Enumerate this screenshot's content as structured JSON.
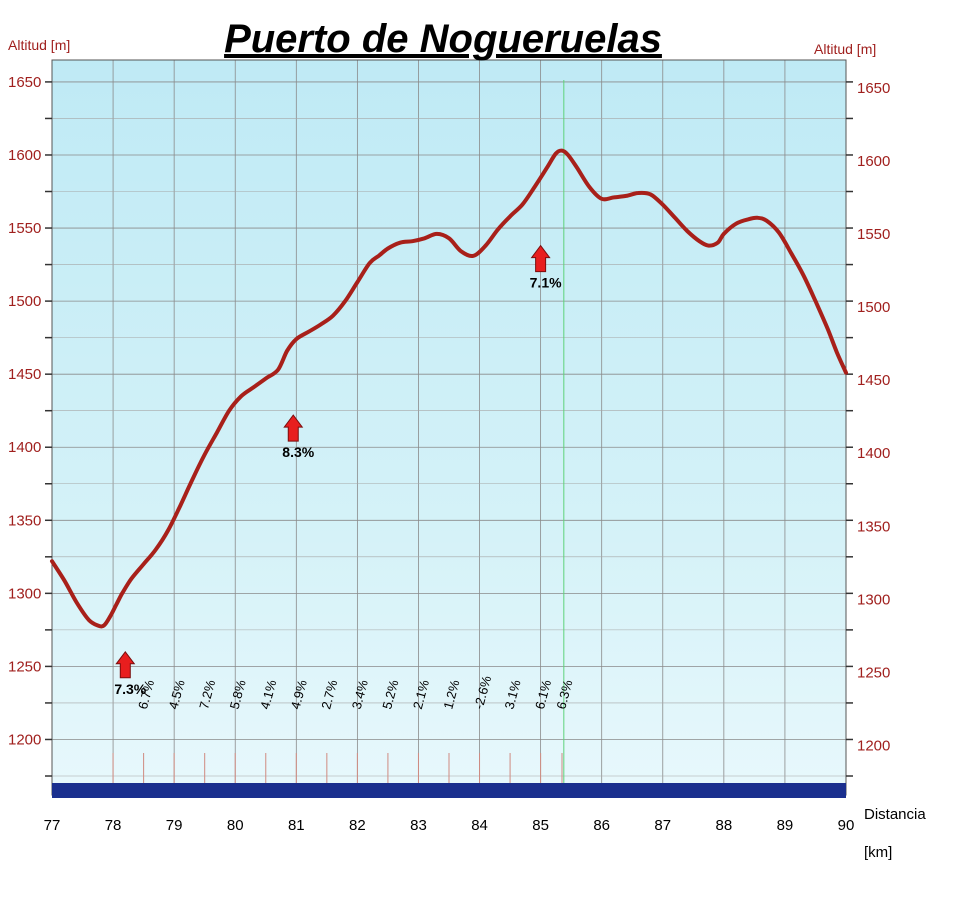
{
  "chart_data": {
    "type": "line",
    "title": "Puerto de Nogueruelas",
    "ylabel_left": "Altitud [m]",
    "ylabel_right": "Altitud [m]",
    "xlabel": "Distancia",
    "xunit": "[km]",
    "xlim": [
      77,
      90
    ],
    "ylim": [
      1162,
      1665
    ],
    "x_ticks": [
      "77",
      "78",
      "79",
      "80",
      "81",
      "82",
      "83",
      "84",
      "85",
      "86",
      "87",
      "88",
      "89",
      "90"
    ],
    "y_ticks": [
      "1200",
      "1250",
      "1300",
      "1350",
      "1400",
      "1450",
      "1500",
      "1550",
      "1600",
      "1650"
    ],
    "grid": true,
    "series": [
      {
        "x": [
          77.0,
          77.2,
          77.4,
          77.6,
          77.75,
          77.85,
          77.95,
          78.05,
          78.15,
          78.3,
          78.5,
          78.7,
          78.9,
          79.1,
          79.3,
          79.5,
          79.7,
          79.9,
          80.1,
          80.3,
          80.5,
          80.7,
          80.85,
          81.0,
          81.2,
          81.4,
          81.6,
          81.8,
          82.0,
          82.2,
          82.35,
          82.5,
          82.7,
          82.9,
          83.1,
          83.3,
          83.5,
          83.7,
          83.9,
          84.1,
          84.3,
          84.5,
          84.7,
          84.9,
          85.1,
          85.25,
          85.35,
          85.45,
          85.6,
          85.8,
          86.0,
          86.2,
          86.4,
          86.6,
          86.8,
          87.0,
          87.2,
          87.4,
          87.6,
          87.75,
          87.9,
          88.0,
          88.2,
          88.4,
          88.55,
          88.7,
          88.9,
          89.1,
          89.3,
          89.5,
          89.7,
          89.85,
          90.0
        ],
        "y": [
          1322,
          1309,
          1294,
          1282,
          1278,
          1278,
          1284,
          1292,
          1300,
          1310,
          1320,
          1330,
          1343,
          1360,
          1378,
          1395,
          1410,
          1425,
          1435,
          1441,
          1447,
          1453,
          1466,
          1474,
          1479,
          1484,
          1490,
          1500,
          1513,
          1526,
          1531,
          1536,
          1540,
          1541,
          1543,
          1546,
          1543,
          1534,
          1531,
          1538,
          1549,
          1558,
          1566,
          1578,
          1591,
          1601,
          1603,
          1600,
          1591,
          1578,
          1570,
          1571,
          1572,
          1574,
          1573,
          1566,
          1557,
          1548,
          1541,
          1538,
          1540,
          1546,
          1553,
          1556,
          1557,
          1555,
          1547,
          1533,
          1518,
          1500,
          1481,
          1465,
          1451
        ]
      }
    ],
    "grade_labels": [
      "6.7%",
      "4.5%",
      "7.2%",
      "5.8%",
      "4.1%",
      "4.9%",
      "2.7%",
      "3.4%",
      "5.2%",
      "2.1%",
      "1.2%",
      "-2.6%",
      "3.1%",
      "6.1%",
      "6.3%"
    ],
    "grade_positions_km": [
      78.5,
      79.0,
      79.5,
      80.0,
      80.5,
      81.0,
      81.5,
      82.0,
      82.5,
      83.0,
      83.5,
      84.0,
      84.5,
      85.0,
      85.35
    ],
    "callouts": [
      {
        "label": "7.3%",
        "km": 78.2,
        "alt": 1260
      },
      {
        "label": "8.3%",
        "km": 80.95,
        "alt": 1422
      },
      {
        "label": "7.1%",
        "km": 85.0,
        "alt": 1538
      }
    ],
    "summit_line_km": 85.38
  },
  "colors": {
    "line": "#a8201a",
    "axis_text": "#a0201e",
    "arrow": "#e81e1e",
    "bg_top": "#bfeaf5",
    "bg_bottom": "#e8f8fc",
    "baseline_bar": "#1a2f8e",
    "summit_line": "#5ed27a"
  }
}
